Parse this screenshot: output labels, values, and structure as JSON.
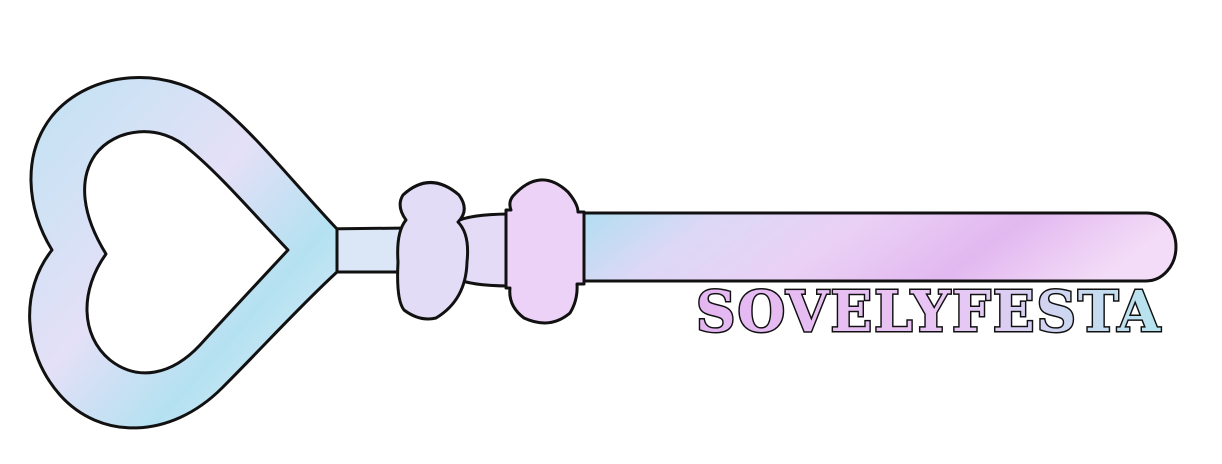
{
  "brand": {
    "name": "SOVELYFESTA"
  },
  "colors": {
    "outline": "#111111",
    "blue": "#a9dff0",
    "lavender": "#dcd2f6",
    "violet": "#e2b8f0",
    "pink": "#f1d8f6",
    "background": "#ffffff"
  },
  "icons": {
    "key": "heart-key-icon"
  }
}
